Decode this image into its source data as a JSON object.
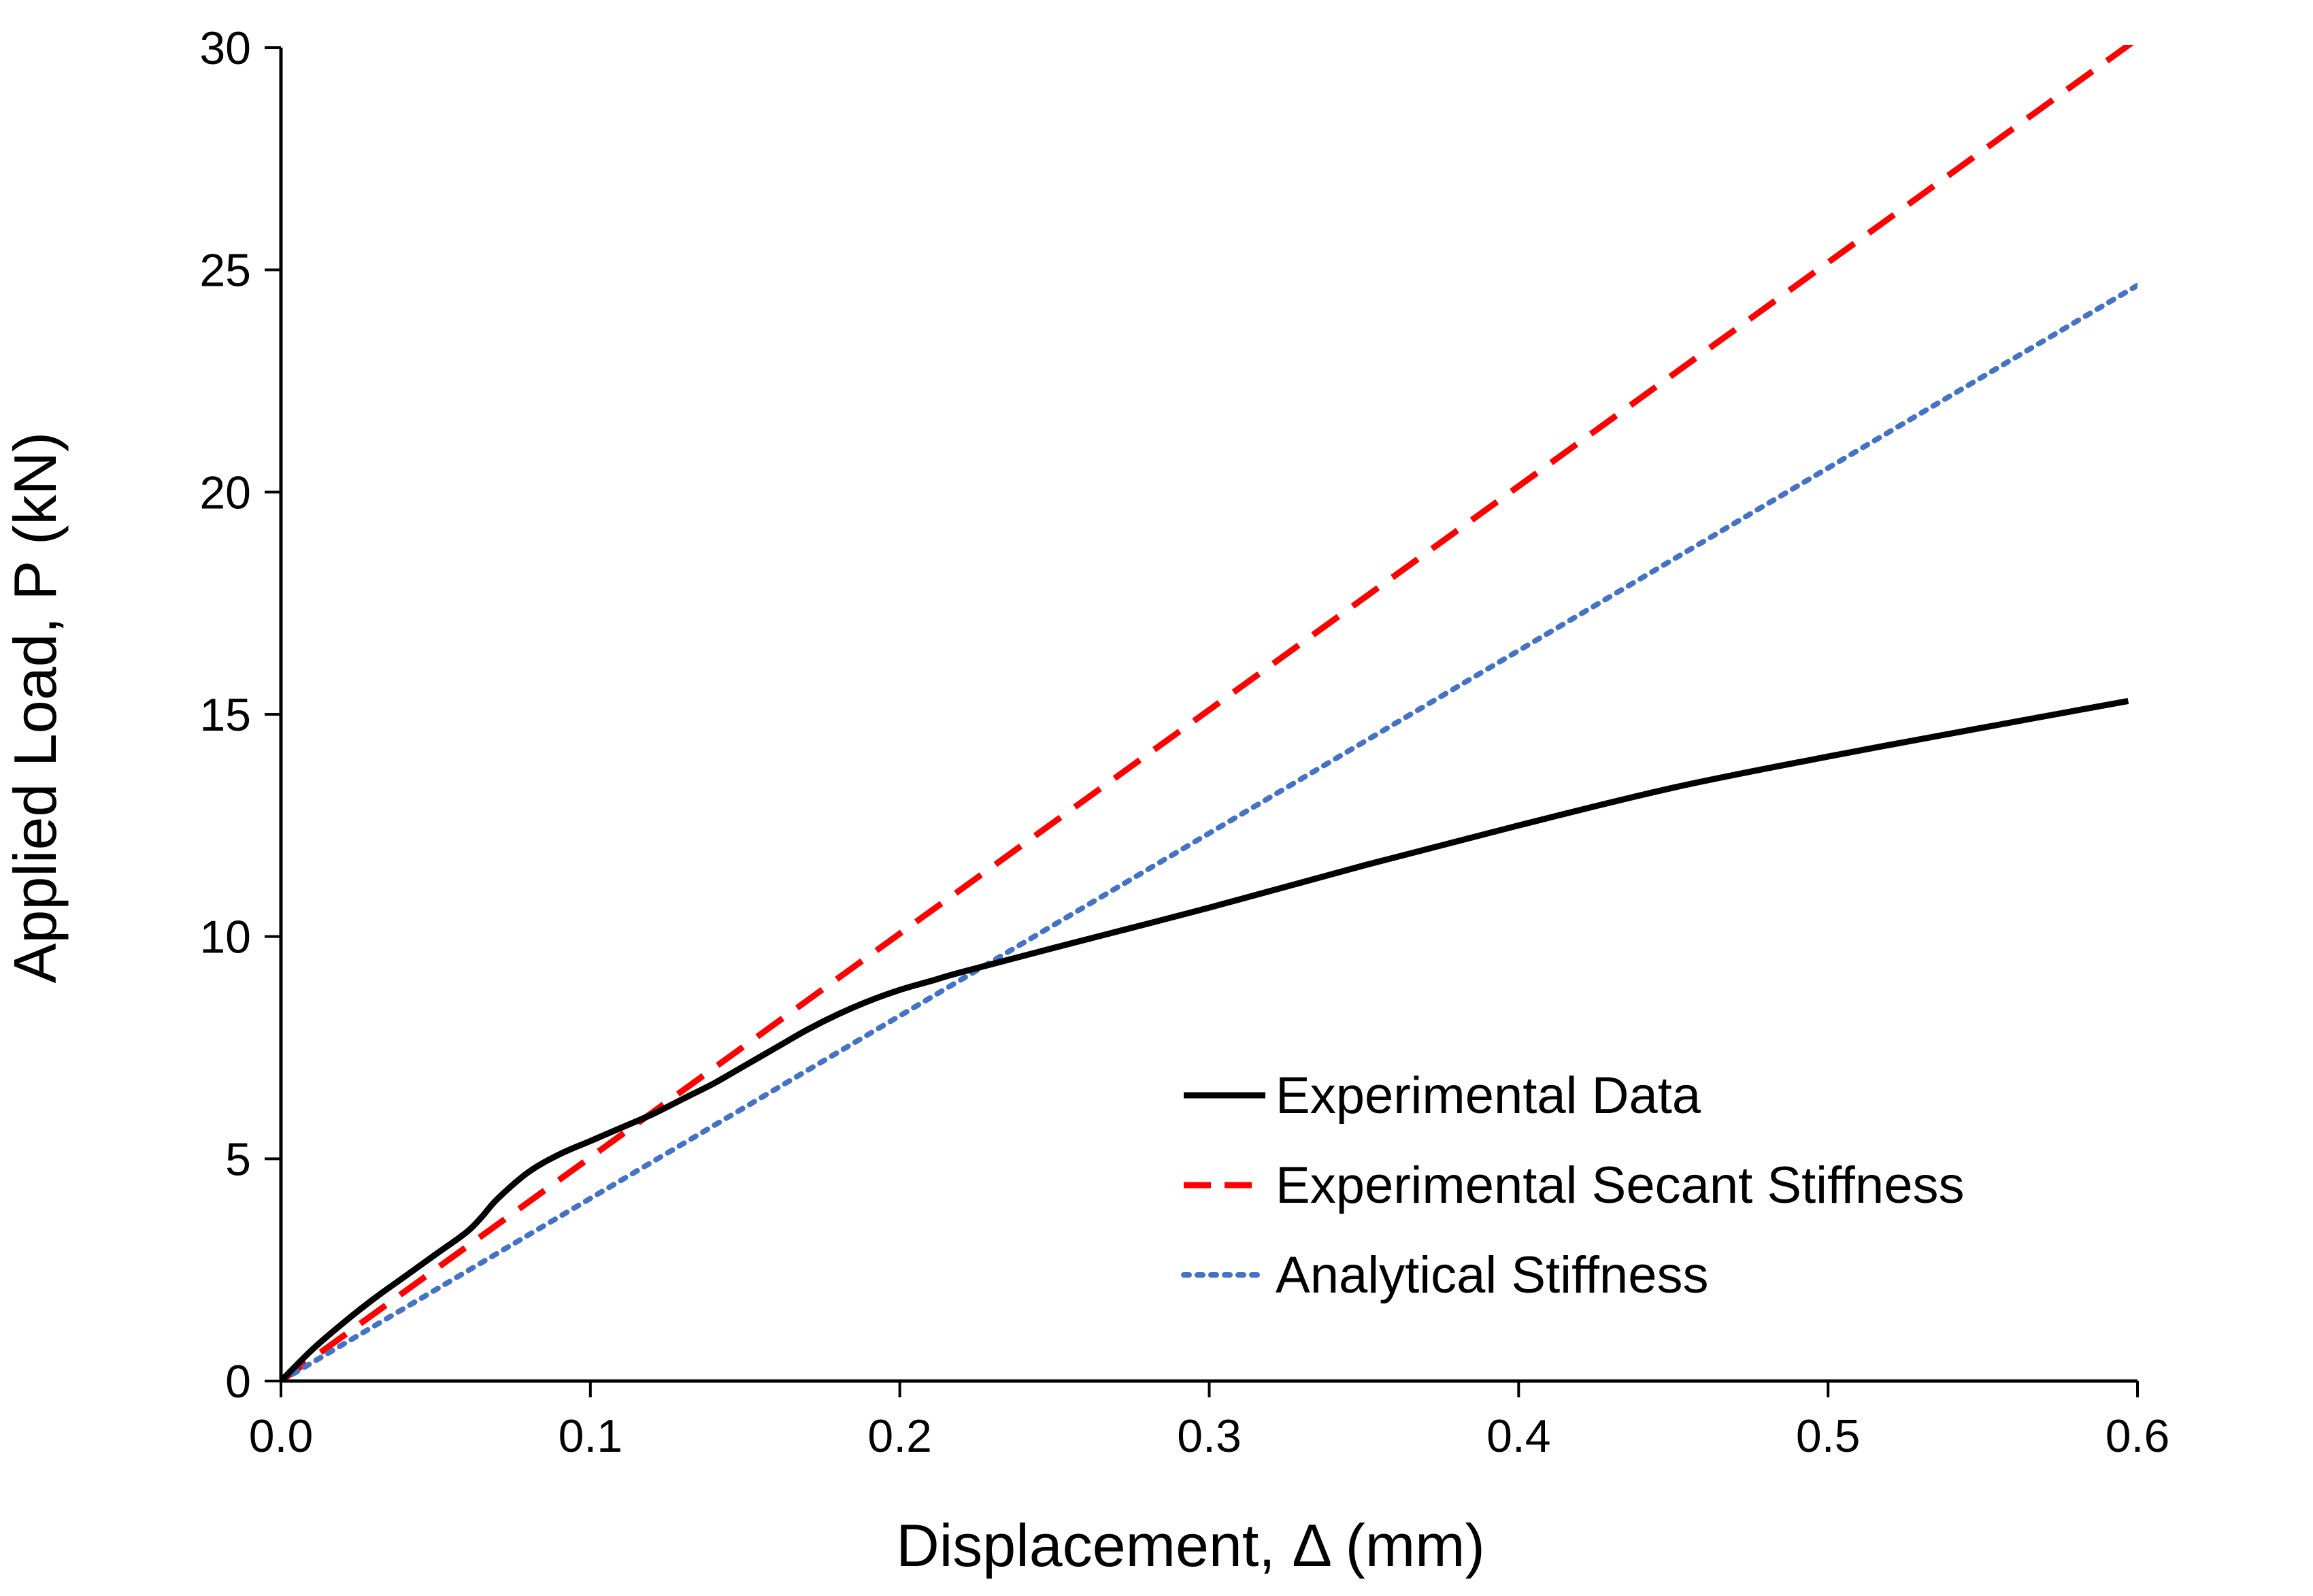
{
  "chart_data": {
    "type": "line",
    "title": "",
    "xlabel": "Displacement, Δ (mm)",
    "ylabel": "Applied Load, P (kN)",
    "xlim": [
      0,
      0.6
    ],
    "ylim": [
      0,
      30
    ],
    "xticks": [
      0,
      0.1,
      0.2,
      0.3,
      0.4,
      0.5,
      0.6
    ],
    "xtick_labels": [
      "0.0",
      "0.1",
      "0.2",
      "0.3",
      "0.4",
      "0.5",
      "0.6"
    ],
    "yticks": [
      0,
      5,
      10,
      15,
      20,
      25,
      30
    ],
    "ytick_labels": [
      "0",
      "5",
      "10",
      "15",
      "20",
      "25",
      "30"
    ],
    "grid": false,
    "legend_position": "bottom-right",
    "series": [
      {
        "name": "Experimental Data",
        "style": "solid",
        "color": "#000000",
        "x": [
          0,
          0.01,
          0.02,
          0.03,
          0.04,
          0.05,
          0.06,
          0.065,
          0.07,
          0.08,
          0.09,
          0.1,
          0.11,
          0.12,
          0.13,
          0.14,
          0.15,
          0.16,
          0.17,
          0.18,
          0.19,
          0.2,
          0.21,
          0.22,
          0.25,
          0.3,
          0.35,
          0.4,
          0.45,
          0.5,
          0.55,
          0.597
        ],
        "y": [
          0,
          0.7,
          1.3,
          1.85,
          2.35,
          2.85,
          3.35,
          3.7,
          4.1,
          4.7,
          5.1,
          5.4,
          5.7,
          6.0,
          6.35,
          6.7,
          7.1,
          7.5,
          7.9,
          8.25,
          8.55,
          8.8,
          9.0,
          9.2,
          9.75,
          10.65,
          11.6,
          12.5,
          13.35,
          14.05,
          14.7,
          15.3
        ]
      },
      {
        "name": "Experimental Secant Stiffness",
        "style": "dashed",
        "color": "#ff0000",
        "x": [
          0,
          0.6
        ],
        "y": [
          0,
          30.2
        ]
      },
      {
        "name": "Analytical Stiffness",
        "style": "dotted",
        "color": "#4472c4",
        "x": [
          0,
          0.6
        ],
        "y": [
          0,
          24.65
        ]
      }
    ]
  }
}
